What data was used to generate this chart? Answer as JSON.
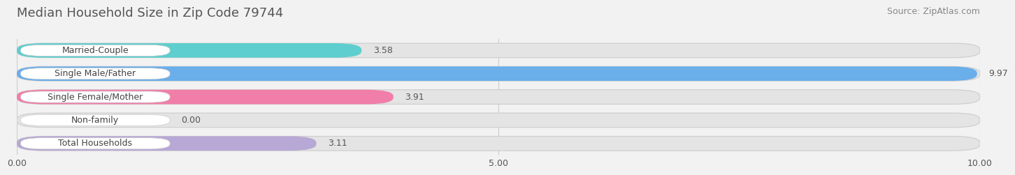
{
  "title": "Median Household Size in Zip Code 79744",
  "source": "Source: ZipAtlas.com",
  "categories": [
    "Married-Couple",
    "Single Male/Father",
    "Single Female/Mother",
    "Non-family",
    "Total Households"
  ],
  "values": [
    3.58,
    9.97,
    3.91,
    0.0,
    3.11
  ],
  "bar_colors": [
    "#5ecece",
    "#6aaeea",
    "#f07ea8",
    "#f5c890",
    "#b8a8d5"
  ],
  "xlim": [
    0,
    10.0
  ],
  "xticks": [
    0.0,
    5.0,
    10.0
  ],
  "xtick_labels": [
    "0.00",
    "5.00",
    "10.00"
  ],
  "background_color": "#f2f2f2",
  "bar_bg_color": "#e4e4e4",
  "title_fontsize": 13,
  "source_fontsize": 9,
  "label_fontsize": 9,
  "value_fontsize": 9,
  "bar_height": 0.62,
  "fig_width": 14.06,
  "fig_height": 2.69
}
